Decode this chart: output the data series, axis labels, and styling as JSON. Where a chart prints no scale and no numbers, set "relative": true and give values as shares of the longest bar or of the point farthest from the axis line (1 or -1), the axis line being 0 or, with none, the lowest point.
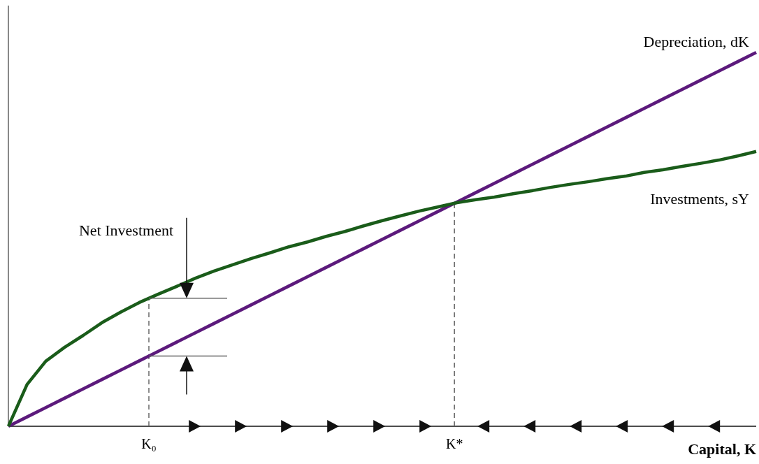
{
  "chart_data": {
    "type": "line",
    "relative": true,
    "xlabel": "Capital, K",
    "legend": false,
    "marker": "none",
    "line_style": "solid",
    "categories": [
      null,
      null,
      null,
      null,
      null,
      null,
      null,
      null,
      null,
      null,
      null,
      null,
      null,
      null,
      null,
      null,
      null,
      null,
      null,
      null,
      null,
      null,
      null,
      null,
      null,
      null,
      null,
      null,
      null,
      null,
      null,
      null,
      null,
      null,
      null,
      null,
      null,
      null,
      null,
      null,
      null
    ],
    "series": [
      {
        "name": "Depreciation, dK",
        "color": "#5c1a7c",
        "values": [
          0,
          0.025,
          0.05,
          0.075,
          0.1,
          0.125,
          0.15,
          0.175,
          0.2,
          0.225,
          0.25,
          0.275,
          0.3,
          0.325,
          0.35,
          0.375,
          0.4,
          0.425,
          0.45,
          0.475,
          0.5,
          0.525,
          0.55,
          0.575,
          0.6,
          0.625,
          0.65,
          0.675,
          0.7,
          0.725,
          0.75,
          0.775,
          0.8,
          0.825,
          0.85,
          0.875,
          0.9,
          0.925,
          0.95,
          0.975,
          1
        ]
      },
      {
        "name": "Investments, sY",
        "color": "#1a5c1a",
        "values": [
          0,
          0.112,
          0.174,
          0.211,
          0.243,
          0.277,
          0.305,
          0.331,
          0.353,
          0.374,
          0.396,
          0.415,
          0.432,
          0.449,
          0.464,
          0.48,
          0.493,
          0.508,
          0.521,
          0.536,
          0.55,
          0.563,
          0.576,
          0.587,
          0.598,
          0.606,
          0.613,
          0.622,
          0.63,
          0.639,
          0.647,
          0.654,
          0.662,
          0.669,
          0.679,
          0.686,
          0.695,
          0.703,
          0.712,
          0.723,
          0.735
        ]
      }
    ],
    "annotations": [
      "Net Investment",
      "K₀",
      "K*"
    ]
  }
}
